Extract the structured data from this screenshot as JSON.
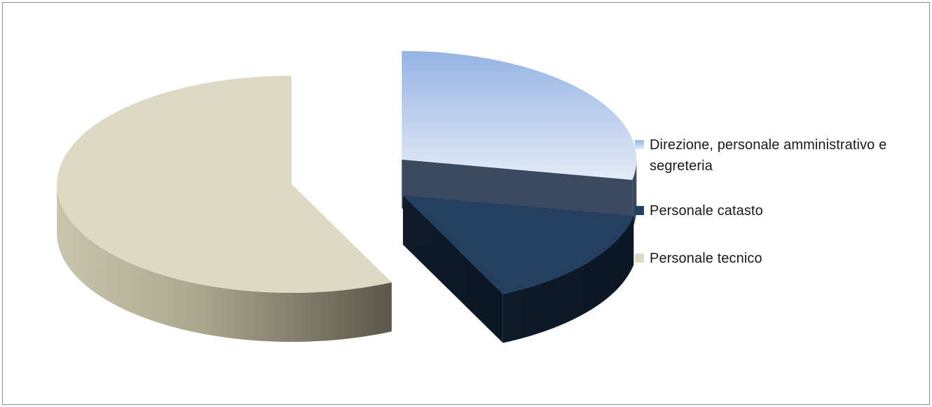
{
  "chart_data": {
    "type": "pie",
    "style": "3d-exploded",
    "slices": [
      {
        "label": "Direzione, personale amministrativo e segreteria",
        "value": 28,
        "color": "#a4bde6"
      },
      {
        "label": "Personale catasto",
        "value": 15,
        "color": "#243f60"
      },
      {
        "label": "Personale tecnico",
        "value": 57,
        "color": "#ddd9c3"
      }
    ],
    "legend_position": "right"
  },
  "legend": {
    "items": [
      {
        "label": "Direzione, personale amministrativo e segreteria",
        "color": "#a4bde6"
      },
      {
        "label": "Personale catasto",
        "color": "#243f60"
      },
      {
        "label": "Personale tecnico",
        "color": "#ddd9c3"
      }
    ]
  }
}
